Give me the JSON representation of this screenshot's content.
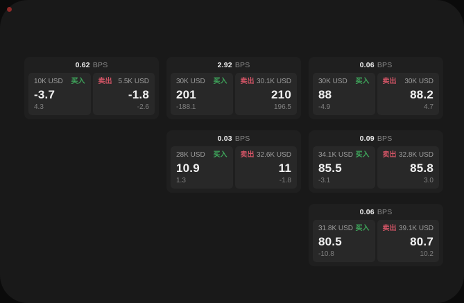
{
  "window": {
    "indicator_color": "#8f2a28"
  },
  "colors": {
    "buy_green": "#3fa85c",
    "sell_red": "#d15465",
    "card_bg": "#1f1f1f",
    "panel_bg": "#282828",
    "window_bg": "#191919"
  },
  "cards": [
    {
      "bps": "0.62",
      "unit": "BPS",
      "buy": {
        "amount": "10K USD",
        "label": "买入",
        "main": "-3.7",
        "sub": "4.3"
      },
      "sell": {
        "label": "卖出",
        "amount": "5.5K USD",
        "main": "-1.8",
        "sub": "-2.6"
      }
    },
    {
      "bps": "2.92",
      "unit": "BPS",
      "buy": {
        "amount": "30K USD",
        "label": "买入",
        "main": "201",
        "sub": "-188.1"
      },
      "sell": {
        "label": "卖出",
        "amount": "30.1K USD",
        "main": "210",
        "sub": "196.5"
      }
    },
    {
      "bps": "0.06",
      "unit": "BPS",
      "buy": {
        "amount": "30K USD",
        "label": "买入",
        "main": "88",
        "sub": "-4.9"
      },
      "sell": {
        "label": "卖出",
        "amount": "30K USD",
        "main": "88.2",
        "sub": "4.7"
      }
    },
    {
      "bps": "0.03",
      "unit": "BPS",
      "buy": {
        "amount": "28K USD",
        "label": "买入",
        "main": "10.9",
        "sub": "1.3"
      },
      "sell": {
        "label": "卖出",
        "amount": "32.6K USD",
        "main": "11",
        "sub": "-1.8"
      }
    },
    {
      "bps": "0.09",
      "unit": "BPS",
      "buy": {
        "amount": "34.1K USD",
        "label": "买入",
        "main": "85.5",
        "sub": "-3.1"
      },
      "sell": {
        "label": "卖出",
        "amount": "32.8K USD",
        "main": "85.8",
        "sub": "3.0"
      }
    },
    {
      "bps": "0.06",
      "unit": "BPS",
      "buy": {
        "amount": "31.8K USD",
        "label": "买入",
        "main": "80.5",
        "sub": "-10.8"
      },
      "sell": {
        "label": "卖出",
        "amount": "39.1K USD",
        "main": "80.7",
        "sub": "10.2"
      }
    }
  ]
}
